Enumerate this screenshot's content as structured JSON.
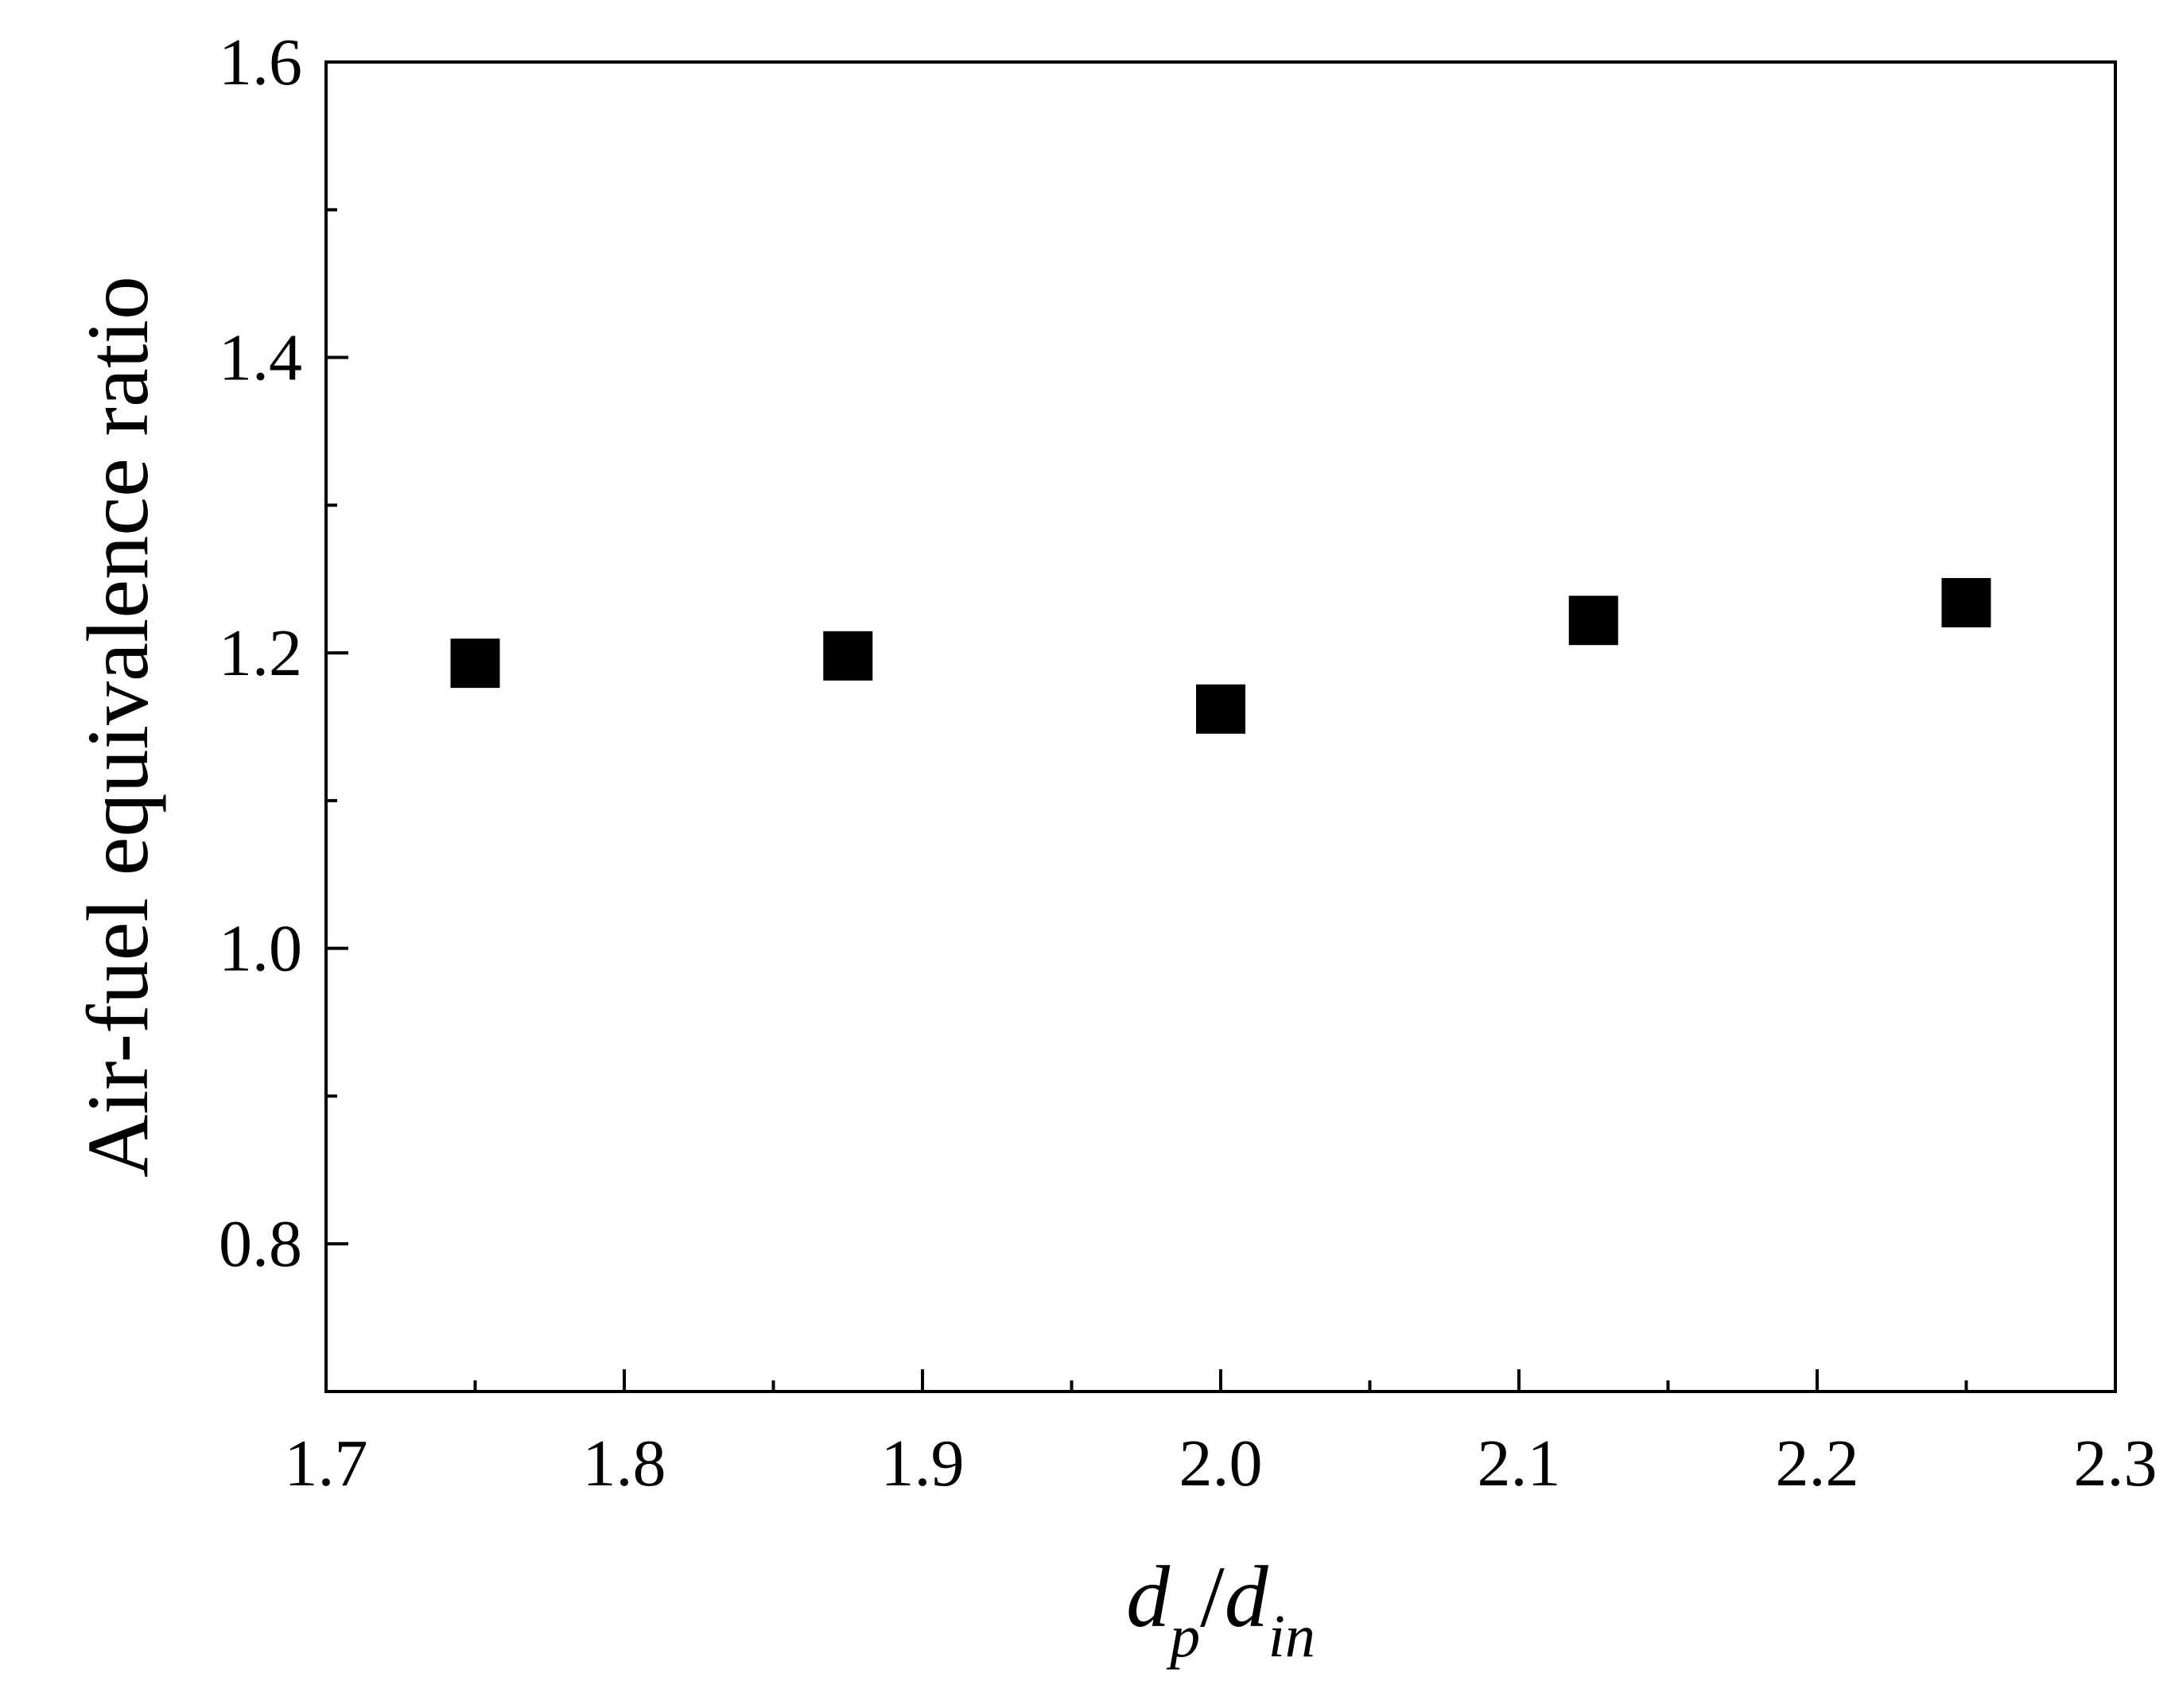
{
  "chart_data": {
    "type": "scatter",
    "xlabel": {
      "main": "d",
      "sub1": "p",
      "sep": "/",
      "main2": "d",
      "sub2": "in"
    },
    "ylabel": "Air-fuel equivalence ratio",
    "xlim": [
      1.7,
      2.3
    ],
    "ylim": [
      0.7,
      1.6
    ],
    "xticks": [
      "1.7",
      "1.8",
      "1.9",
      "2.0",
      "2.1",
      "2.2",
      "2.3"
    ],
    "yticks": [
      "0.8",
      "1.0",
      "1.2",
      "1.4",
      "1.6"
    ],
    "grid": false,
    "marker": "filled-square",
    "color": "#000000",
    "series": [
      {
        "x": [
          1.75,
          1.875,
          2.0,
          2.125,
          2.25
        ],
        "y": [
          1.193,
          1.198,
          1.162,
          1.222,
          1.234
        ]
      }
    ]
  }
}
